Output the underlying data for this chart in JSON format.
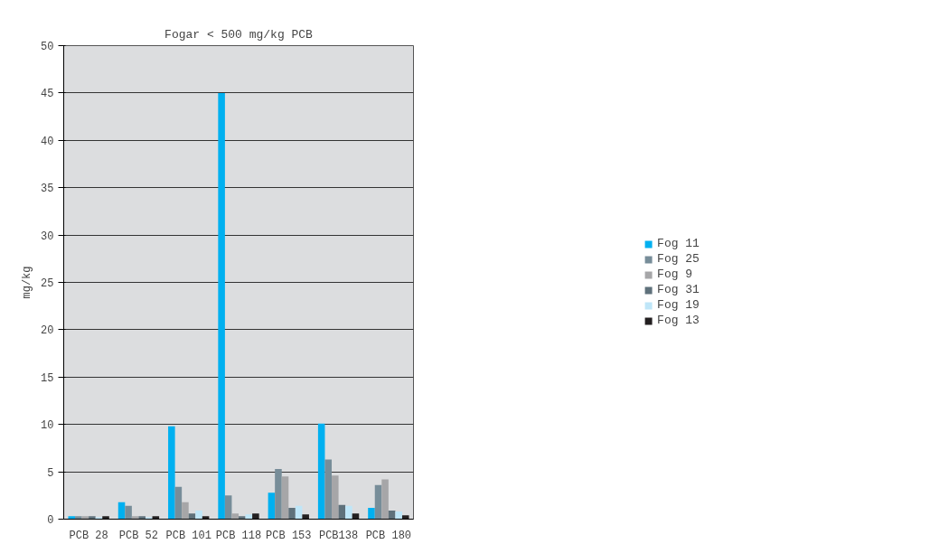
{
  "chart_data": {
    "type": "bar",
    "title": "Fogar < 500 mg/kg PCB",
    "ylabel": "mg/kg",
    "categories": [
      "PCB 28",
      "PCB 52",
      "PCB 101",
      "PCB 118",
      "PCB 153",
      "PCB138",
      "PCB 180"
    ],
    "series": [
      {
        "name": "Fog 11",
        "color": "#00b0f0",
        "values": [
          0.3,
          1.8,
          9.8,
          45,
          2.8,
          10.1,
          1.2
        ]
      },
      {
        "name": "Fog 25",
        "color": "#778d99",
        "values": [
          0.3,
          1.4,
          3.4,
          2.5,
          5.3,
          6.3,
          3.6
        ]
      },
      {
        "name": "Fog 9",
        "color": "#a6a6a8",
        "values": [
          0.3,
          0.3,
          1.8,
          0.6,
          4.5,
          4.6,
          4.2
        ]
      },
      {
        "name": "Fog 31",
        "color": "#5f717b",
        "values": [
          0.3,
          0.3,
          0.6,
          0.3,
          1.2,
          1.5,
          0.9
        ]
      },
      {
        "name": "Fog 19",
        "color": "#bfe6f8",
        "values": [
          0.2,
          0.2,
          0.9,
          0.5,
          1.4,
          1.4,
          0.8
        ]
      },
      {
        "name": "Fog 13",
        "color": "#231f20",
        "values": [
          0.3,
          0.3,
          0.3,
          0.6,
          0.5,
          0.6,
          0.4
        ]
      }
    ],
    "ylim": [
      0,
      50
    ],
    "yticks": [
      0,
      5,
      10,
      15,
      20,
      25,
      30,
      35,
      40,
      45,
      50
    ],
    "grid": "y",
    "legend": "right"
  }
}
